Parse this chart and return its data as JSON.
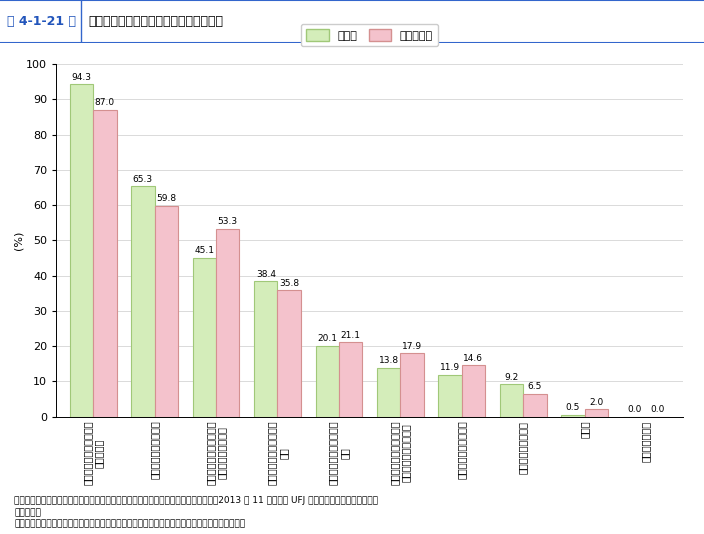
{
  "values_a": [
    94.3,
    65.3,
    45.1,
    38.4,
    20.1,
    13.8,
    11.9,
    9.2,
    0.5,
    0.0
  ],
  "values_b": [
    87.0,
    59.8,
    53.3,
    35.8,
    21.1,
    17.9,
    14.6,
    6.5,
    2.0,
    0.0
  ],
  "labels_a": [
    "94.3",
    "65.3",
    "45.1",
    "38.4",
    "20.1",
    "13.8",
    "11.9",
    "9.2",
    "0.5",
    "0.0"
  ],
  "labels_b": [
    "87.0",
    "59.8",
    "53.3",
    "35.8",
    "21.1",
    "17.9",
    "14.6",
    "6.5",
    "2.0",
    "0.0"
  ],
  "color_a": "#d4edba",
  "color_b": "#f4c2cc",
  "legend_a": "商工会",
  "legend_b": "商工会議所",
  "ylabel": "(%)",
  "ylim": [
    0,
    100
  ],
  "yticks": [
    0,
    10,
    20,
    30,
    40,
    50,
    60,
    70,
    80,
    90,
    100
  ],
  "bar_edge_color_a": "#a0c878",
  "bar_edge_color_b": "#d49090",
  "header_num": "第 4-1-21 図",
  "header_title": "商工会・商工会議所の強み（複数回答）",
  "xlabels": [
    "地域に密着した「顔の見\nえる」支援",
    "幅広い相談に対応可能",
    "小規模企業支援のノウハ\nウを持っていること",
    "自治体と連携した支援が\n可能",
    "振わいの創出など地域活\n性化",
    "中小企業支援機関同士の\nコーディネートが可能",
    "非営利組織であること",
    "専門的な指導が可能",
    "その他",
    "特に強みはない"
  ],
  "source_text": "資料：中小企業庁委託「中小企業支援機関の連携状況と施策認知度に関する調査」（2013 年 11 月、三菱 UFJ リサーチ＆コンサルティング\n　（株））",
  "note_text": "（注）商工会・商工会議所の強みとして１位から３位を回答してもらったものを集計している。"
}
